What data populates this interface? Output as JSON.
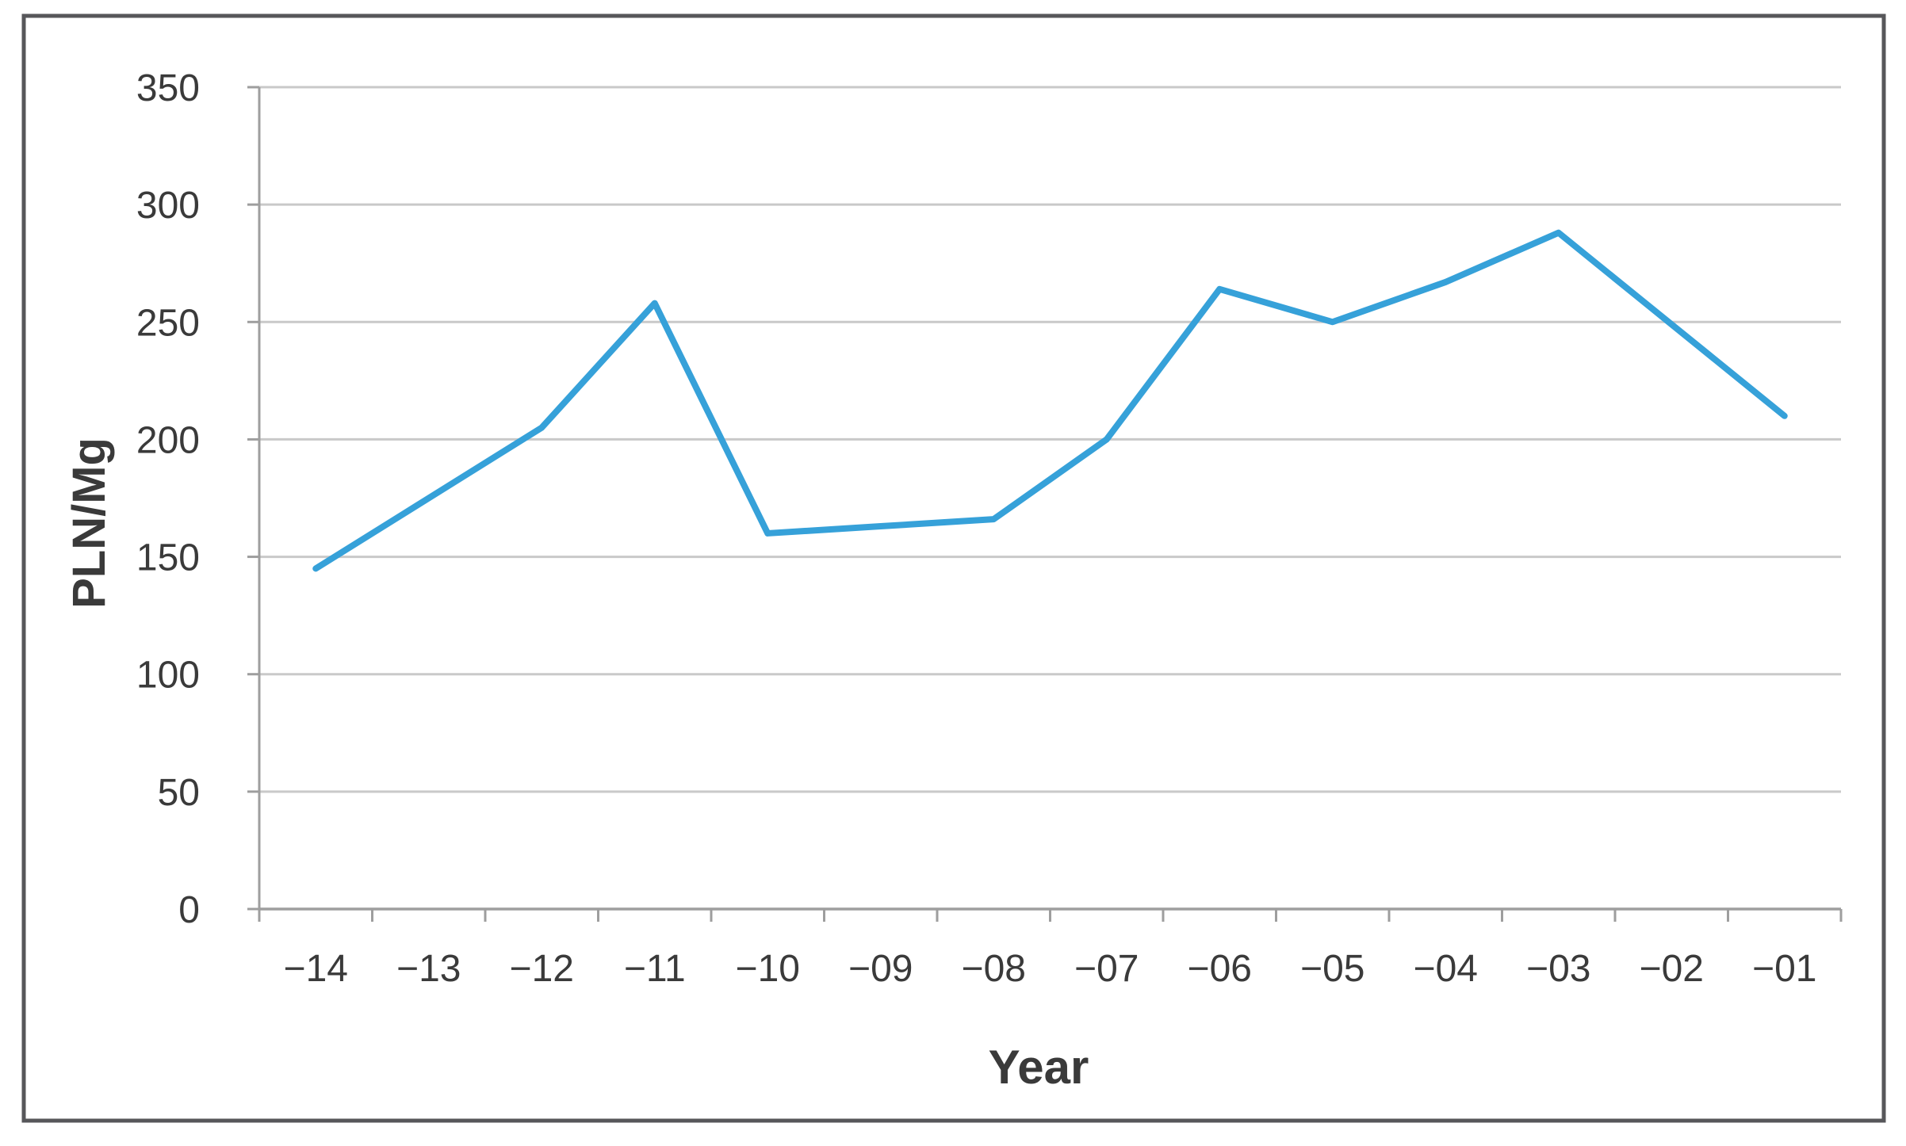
{
  "page": {
    "background": "#ffffff"
  },
  "figure": {
    "border_color": "#57575a",
    "fill": "#ffffff"
  },
  "chart_data": {
    "type": "line",
    "title": "",
    "xlabel": "Year",
    "ylabel": "PLN/Mg",
    "categories": [
      "−14",
      "−13",
      "−12",
      "−11",
      "−10",
      "−09",
      "−08",
      "−07",
      "−06",
      "−05",
      "−04",
      "−03",
      "−02",
      "−01"
    ],
    "values": [
      145,
      175,
      205,
      258,
      160,
      163,
      166,
      200,
      264,
      250,
      267,
      288,
      249,
      210
    ],
    "ylim": [
      0,
      350
    ],
    "yticks": [
      0,
      50,
      100,
      150,
      200,
      250,
      300,
      350
    ],
    "grid": true,
    "legend": false,
    "line_color": "#36a1d9",
    "gridline_color": "#c9c9c9",
    "axis_color": "#9e9e9e",
    "text_color": "#3a3a3a"
  }
}
